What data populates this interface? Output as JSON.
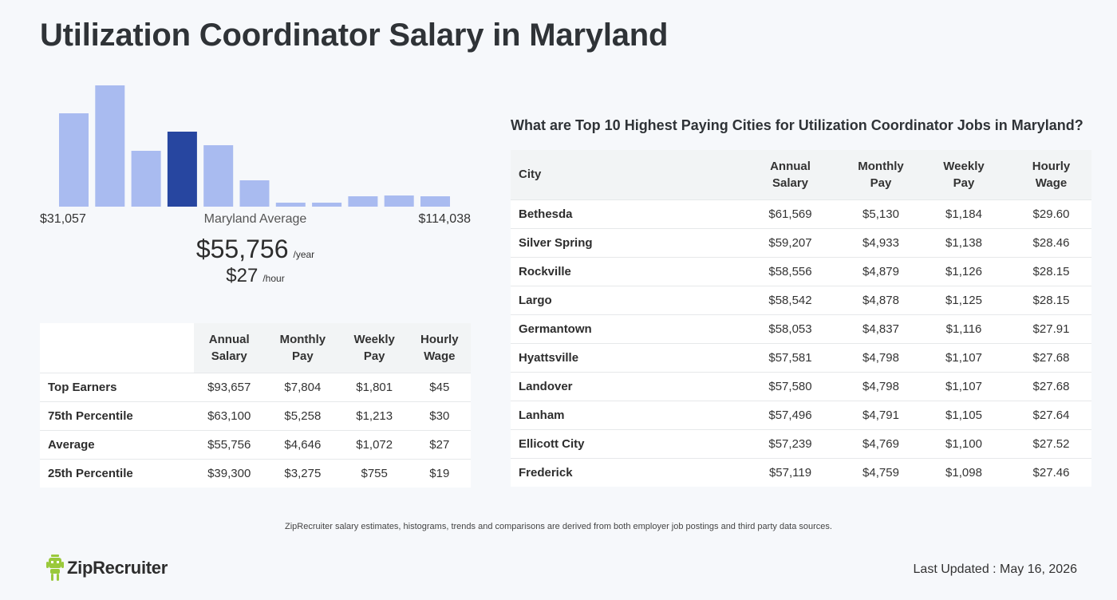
{
  "title": "Utilization Coordinator Salary in Maryland",
  "histogram": {
    "min_label": "$31,057",
    "max_label": "$114,038",
    "center_label": "Maryland Average",
    "average_year": "$55,756",
    "year_unit": "/year",
    "average_hour": "$27",
    "hour_unit": "/hour",
    "colors": {
      "normal": "#a9bbf0",
      "highlight": "#2746a0"
    }
  },
  "chart_data": {
    "type": "bar",
    "title": "",
    "xlabel": "",
    "ylabel": "",
    "categories": [
      "1",
      "2",
      "3",
      "4",
      "5",
      "6",
      "7",
      "8",
      "9",
      "10",
      "11"
    ],
    "values": [
      117,
      152,
      70,
      94,
      77,
      33,
      5,
      5,
      13,
      14,
      13
    ],
    "highlight_index": 3,
    "ylim": [
      0,
      152
    ],
    "grid": false
  },
  "percentile_table": {
    "headers": [
      "Annual Salary",
      "Monthly Pay",
      "Weekly Pay",
      "Hourly Wage"
    ],
    "rows": [
      {
        "label": "Top Earners",
        "annual": "$93,657",
        "monthly": "$7,804",
        "weekly": "$1,801",
        "hourly": "$45"
      },
      {
        "label": "75th Percentile",
        "annual": "$63,100",
        "monthly": "$5,258",
        "weekly": "$1,213",
        "hourly": "$30"
      },
      {
        "label": "Average",
        "annual": "$55,756",
        "monthly": "$4,646",
        "weekly": "$1,072",
        "hourly": "$27"
      },
      {
        "label": "25th Percentile",
        "annual": "$39,300",
        "monthly": "$3,275",
        "weekly": "$755",
        "hourly": "$19"
      }
    ]
  },
  "city_section": {
    "title": "What are Top 10 Highest Paying Cities for Utilization Coordinator Jobs in Maryland?",
    "headers": [
      "City",
      "Annual Salary",
      "Monthly Pay",
      "Weekly Pay",
      "Hourly Wage"
    ],
    "rows": [
      {
        "city": "Bethesda",
        "annual": "$61,569",
        "monthly": "$5,130",
        "weekly": "$1,184",
        "hourly": "$29.60"
      },
      {
        "city": "Silver Spring",
        "annual": "$59,207",
        "monthly": "$4,933",
        "weekly": "$1,138",
        "hourly": "$28.46"
      },
      {
        "city": "Rockville",
        "annual": "$58,556",
        "monthly": "$4,879",
        "weekly": "$1,126",
        "hourly": "$28.15"
      },
      {
        "city": "Largo",
        "annual": "$58,542",
        "monthly": "$4,878",
        "weekly": "$1,125",
        "hourly": "$28.15"
      },
      {
        "city": "Germantown",
        "annual": "$58,053",
        "monthly": "$4,837",
        "weekly": "$1,116",
        "hourly": "$27.91"
      },
      {
        "city": "Hyattsville",
        "annual": "$57,581",
        "monthly": "$4,798",
        "weekly": "$1,107",
        "hourly": "$27.68"
      },
      {
        "city": "Landover",
        "annual": "$57,580",
        "monthly": "$4,798",
        "weekly": "$1,107",
        "hourly": "$27.68"
      },
      {
        "city": "Lanham",
        "annual": "$57,496",
        "monthly": "$4,791",
        "weekly": "$1,105",
        "hourly": "$27.64"
      },
      {
        "city": "Ellicott City",
        "annual": "$57,239",
        "monthly": "$4,769",
        "weekly": "$1,100",
        "hourly": "$27.52"
      },
      {
        "city": "Frederick",
        "annual": "$57,119",
        "monthly": "$4,759",
        "weekly": "$1,098",
        "hourly": "$27.46"
      }
    ]
  },
  "disclaimer": "ZipRecruiter salary estimates, histograms, trends and comparisons are derived from both employer job postings and third party data sources.",
  "footer": {
    "logo_text": "ZipRecruiter",
    "logo_icon": "zip-mascot-icon",
    "logo_color": "#9ac93b",
    "last_updated": "Last Updated : May 16, 2026"
  }
}
